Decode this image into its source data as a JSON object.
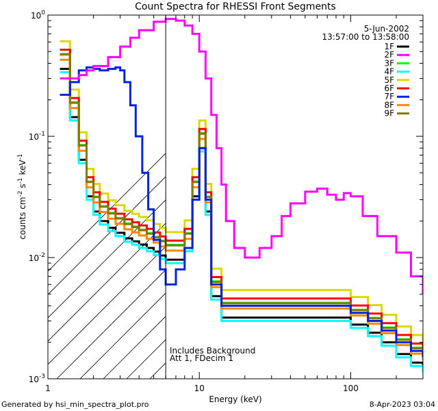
{
  "chart_data": {
    "type": "line",
    "title": "Count Spectra for RHESSI Front Segments",
    "xlabel": "Energy (keV)",
    "ylabel": "counts cm",
    "ylabel_exp1": "-2",
    "ylabel_mid": " s",
    "ylabel_exp2": "-1",
    "ylabel_end": " keV",
    "ylabel_exp3": "-1",
    "xscale": "log",
    "yscale": "log",
    "xlim": [
      1,
      300
    ],
    "ylim": [
      0.001,
      1
    ],
    "x_ticks": [
      {
        "value": 1,
        "label": "1"
      },
      {
        "value": 10,
        "label": "10"
      },
      {
        "value": 100,
        "label": "100"
      }
    ],
    "y_ticks": [
      {
        "value": 1,
        "base": "10",
        "exp": "0"
      },
      {
        "value": 0.1,
        "base": "10",
        "exp": "-1"
      },
      {
        "value": 0.01,
        "base": "10",
        "exp": "-2"
      },
      {
        "value": 0.001,
        "base": "10",
        "exp": "-3"
      }
    ],
    "date": "5-Jun-2002",
    "time_range": "13:57:00 to 13:58:00",
    "vline_energy": 6,
    "annotation_line1": "Includes Background",
    "annotation_line2": "Att 1, FDecim 1",
    "legend_position": "top-right",
    "series": [
      {
        "name": "1F",
        "color": "#000000",
        "level": 0.8,
        "x": [
          1.2,
          1.4,
          1.6,
          1.8,
          2.0,
          2.2,
          2.5,
          2.8,
          3.2,
          3.6,
          4.0,
          4.5,
          5.0,
          5.5,
          6.0,
          7.0,
          8.0,
          9.0,
          10.0,
          11.0,
          12.0,
          14.0,
          17.0,
          20.0,
          25.0,
          30.0,
          40.0,
          50.0,
          60.0,
          80.0,
          100.0,
          130.0,
          160.0,
          200.0,
          250.0,
          300.0
        ],
        "y": [
          0.45,
          0.18,
          0.08,
          0.04,
          0.03,
          0.025,
          0.022,
          0.02,
          0.018,
          0.017,
          0.016,
          0.015,
          0.014,
          0.013,
          0.012,
          0.012,
          0.015,
          0.04,
          0.1,
          0.03,
          0.006,
          0.004,
          0.004,
          0.004,
          0.004,
          0.004,
          0.004,
          0.004,
          0.004,
          0.004,
          0.0035,
          0.003,
          0.0025,
          0.002,
          0.0017,
          0.0015
        ]
      },
      {
        "name": "2F",
        "color": "#ff00ff",
        "level": 1.0,
        "x": [
          1.2,
          1.4,
          1.6,
          1.8,
          2.0,
          2.5,
          3.0,
          3.5,
          4.0,
          5.0,
          6.0,
          7.0,
          8.0,
          9.0,
          10.0,
          11.0,
          12.0,
          13.0,
          14.0,
          15.0,
          17.0,
          20.0,
          25.0,
          30.0,
          35.0,
          40.0,
          50.0,
          60.0,
          70.0,
          80.0,
          90.0,
          100.0,
          120.0,
          150.0,
          200.0,
          250.0,
          300.0
        ],
        "y": [
          0.3,
          0.3,
          0.32,
          0.35,
          0.38,
          0.45,
          0.55,
          0.65,
          0.75,
          0.88,
          0.93,
          0.9,
          0.82,
          0.7,
          0.5,
          0.3,
          0.15,
          0.08,
          0.04,
          0.02,
          0.012,
          0.01,
          0.012,
          0.015,
          0.022,
          0.028,
          0.035,
          0.037,
          0.033,
          0.03,
          0.034,
          0.032,
          0.022,
          0.015,
          0.011,
          0.007,
          0.005
        ]
      },
      {
        "name": "3F",
        "color": "#00ff00",
        "level": 1.06,
        "x": [
          1.2,
          1.4,
          1.6,
          1.8,
          2.0,
          2.2,
          2.5,
          2.8,
          3.2,
          3.6,
          4.0,
          4.5,
          5.0,
          5.5,
          6.0,
          7.0,
          8.0,
          9.0,
          10.0,
          11.0,
          12.0,
          14.0,
          17.0,
          20.0,
          25.0,
          30.0,
          40.0,
          50.0,
          60.0,
          80.0,
          100.0,
          130.0,
          160.0,
          200.0,
          250.0,
          300.0
        ],
        "y": [
          0.45,
          0.18,
          0.08,
          0.04,
          0.03,
          0.025,
          0.022,
          0.02,
          0.018,
          0.017,
          0.016,
          0.015,
          0.014,
          0.013,
          0.012,
          0.012,
          0.015,
          0.04,
          0.1,
          0.03,
          0.006,
          0.004,
          0.004,
          0.004,
          0.004,
          0.004,
          0.004,
          0.004,
          0.004,
          0.004,
          0.0035,
          0.003,
          0.0025,
          0.002,
          0.0017,
          0.0015
        ]
      },
      {
        "name": "4F",
        "color": "#00ffff",
        "level": 0.75,
        "x": [
          1.2,
          1.4,
          1.6,
          1.8,
          2.0,
          2.2,
          2.5,
          2.8,
          3.2,
          3.6,
          4.0,
          4.5,
          5.0,
          5.5,
          6.0,
          7.0,
          8.0,
          9.0,
          10.0,
          11.0,
          12.0,
          14.0,
          17.0,
          20.0,
          25.0,
          30.0,
          40.0,
          50.0,
          60.0,
          80.0,
          100.0,
          130.0,
          160.0,
          200.0,
          250.0,
          300.0
        ],
        "y": [
          0.45,
          0.18,
          0.08,
          0.04,
          0.03,
          0.025,
          0.022,
          0.02,
          0.018,
          0.017,
          0.016,
          0.015,
          0.014,
          0.013,
          0.012,
          0.012,
          0.015,
          0.04,
          0.1,
          0.03,
          0.006,
          0.004,
          0.004,
          0.004,
          0.004,
          0.004,
          0.004,
          0.004,
          0.004,
          0.004,
          0.0035,
          0.003,
          0.0025,
          0.002,
          0.0017,
          0.0015
        ]
      },
      {
        "name": "5F",
        "color": "#d9d900",
        "level": 1.35,
        "x": [
          1.2,
          1.4,
          1.6,
          1.8,
          2.0,
          2.2,
          2.5,
          2.8,
          3.2,
          3.6,
          4.0,
          4.5,
          5.0,
          5.5,
          6.0,
          7.0,
          8.0,
          9.0,
          10.0,
          11.0,
          12.0,
          14.0,
          17.0,
          20.0,
          25.0,
          30.0,
          40.0,
          50.0,
          60.0,
          80.0,
          100.0,
          130.0,
          160.0,
          200.0,
          250.0,
          300.0
        ],
        "y": [
          0.45,
          0.18,
          0.08,
          0.04,
          0.03,
          0.025,
          0.022,
          0.02,
          0.018,
          0.017,
          0.016,
          0.015,
          0.014,
          0.013,
          0.012,
          0.012,
          0.015,
          0.04,
          0.1,
          0.03,
          0.006,
          0.004,
          0.004,
          0.004,
          0.004,
          0.004,
          0.004,
          0.004,
          0.004,
          0.004,
          0.0035,
          0.003,
          0.0025,
          0.002,
          0.0017,
          0.0015
        ]
      },
      {
        "name": "6F",
        "color": "#ff0000",
        "level": 1.15,
        "x": [
          1.2,
          1.4,
          1.6,
          1.8,
          2.0,
          2.2,
          2.5,
          2.8,
          3.2,
          3.6,
          4.0,
          4.5,
          5.0,
          5.5,
          6.0,
          7.0,
          8.0,
          9.0,
          10.0,
          11.0,
          12.0,
          14.0,
          17.0,
          20.0,
          25.0,
          30.0,
          40.0,
          50.0,
          60.0,
          80.0,
          100.0,
          130.0,
          160.0,
          200.0,
          250.0,
          300.0
        ],
        "y": [
          0.45,
          0.18,
          0.08,
          0.04,
          0.03,
          0.025,
          0.022,
          0.02,
          0.018,
          0.017,
          0.016,
          0.015,
          0.014,
          0.013,
          0.012,
          0.012,
          0.015,
          0.04,
          0.1,
          0.03,
          0.006,
          0.004,
          0.004,
          0.004,
          0.004,
          0.004,
          0.004,
          0.004,
          0.004,
          0.004,
          0.0035,
          0.003,
          0.0025,
          0.002,
          0.0017,
          0.0015
        ]
      },
      {
        "name": "7F",
        "color": "#0022dd",
        "level": 1.0,
        "x": [
          1.2,
          1.4,
          1.6,
          1.8,
          2.0,
          2.2,
          2.5,
          2.8,
          3.0,
          3.2,
          3.5,
          3.8,
          4.2,
          4.6,
          5.0,
          5.5,
          6.0,
          7.0,
          8.0,
          9.0,
          10.0,
          11.0,
          12.0,
          14.0,
          17.0,
          20.0,
          25.0,
          30.0,
          40.0,
          50.0,
          60.0,
          80.0,
          100.0,
          130.0,
          160.0,
          200.0,
          250.0,
          300.0
        ],
        "y": [
          0.22,
          0.28,
          0.35,
          0.37,
          0.36,
          0.35,
          0.36,
          0.37,
          0.35,
          0.28,
          0.18,
          0.1,
          0.05,
          0.025,
          0.014,
          0.008,
          0.006,
          0.008,
          0.012,
          0.03,
          0.08,
          0.03,
          0.006,
          0.004,
          0.004,
          0.004,
          0.004,
          0.004,
          0.004,
          0.004,
          0.004,
          0.004,
          0.0035,
          0.003,
          0.0025,
          0.002,
          0.0017,
          0.0015
        ]
      },
      {
        "name": "8F",
        "color": "#ff8800",
        "level": 0.95,
        "x": [
          1.2,
          1.4,
          1.6,
          1.8,
          2.0,
          2.2,
          2.5,
          2.8,
          3.2,
          3.6,
          4.0,
          4.5,
          5.0,
          5.5,
          6.0,
          7.0,
          8.0,
          9.0,
          10.0,
          11.0,
          12.0,
          14.0,
          17.0,
          20.0,
          25.0,
          30.0,
          40.0,
          50.0,
          60.0,
          80.0,
          100.0,
          130.0,
          160.0,
          200.0,
          250.0,
          300.0
        ],
        "y": [
          0.45,
          0.18,
          0.08,
          0.04,
          0.03,
          0.025,
          0.022,
          0.02,
          0.018,
          0.017,
          0.016,
          0.015,
          0.014,
          0.013,
          0.012,
          0.012,
          0.015,
          0.04,
          0.1,
          0.03,
          0.006,
          0.004,
          0.004,
          0.004,
          0.004,
          0.004,
          0.004,
          0.004,
          0.004,
          0.004,
          0.0035,
          0.003,
          0.0025,
          0.002,
          0.0017,
          0.0015
        ]
      },
      {
        "name": "9F",
        "color": "#7f7a00",
        "level": 1.05,
        "x": [
          1.2,
          1.4,
          1.6,
          1.8,
          2.0,
          2.2,
          2.5,
          2.8,
          3.2,
          3.6,
          4.0,
          4.5,
          5.0,
          5.5,
          6.0,
          7.0,
          8.0,
          9.0,
          10.0,
          11.0,
          12.0,
          14.0,
          17.0,
          20.0,
          25.0,
          30.0,
          40.0,
          50.0,
          60.0,
          80.0,
          100.0,
          130.0,
          160.0,
          200.0,
          250.0,
          300.0
        ],
        "y": [
          0.45,
          0.18,
          0.08,
          0.04,
          0.03,
          0.025,
          0.022,
          0.02,
          0.018,
          0.017,
          0.016,
          0.015,
          0.014,
          0.013,
          0.012,
          0.012,
          0.015,
          0.04,
          0.1,
          0.03,
          0.006,
          0.004,
          0.004,
          0.004,
          0.004,
          0.004,
          0.004,
          0.004,
          0.004,
          0.004,
          0.0035,
          0.003,
          0.0025,
          0.002,
          0.0017,
          0.0015
        ]
      }
    ]
  },
  "footer": {
    "generated_by": "Generated by hsi_min_spectra_plot.pro",
    "timestamp": "8-Apr-2023 03:04"
  }
}
